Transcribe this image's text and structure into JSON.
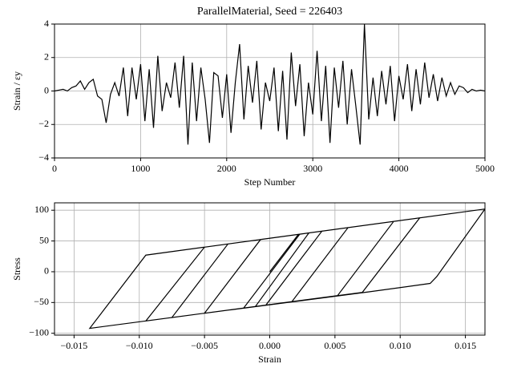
{
  "chart_data": [
    {
      "type": "line",
      "title": "ParallelMaterial, Seed = 226403",
      "xlabel": "Step Number",
      "ylabel": "Strain / εy",
      "color": "#000000",
      "grid": true,
      "x": [
        0,
        50,
        100,
        150,
        200,
        250,
        300,
        350,
        400,
        450,
        500,
        550,
        600,
        650,
        700,
        750,
        800,
        850,
        900,
        950,
        1000,
        1050,
        1100,
        1150,
        1200,
        1250,
        1300,
        1350,
        1400,
        1450,
        1500,
        1550,
        1600,
        1650,
        1700,
        1750,
        1800,
        1850,
        1900,
        1950,
        2000,
        2050,
        2100,
        2150,
        2200,
        2250,
        2300,
        2350,
        2400,
        2450,
        2500,
        2550,
        2600,
        2650,
        2700,
        2750,
        2800,
        2850,
        2900,
        2950,
        3000,
        3050,
        3100,
        3150,
        3200,
        3250,
        3300,
        3350,
        3400,
        3450,
        3500,
        3550,
        3600,
        3650,
        3700,
        3750,
        3800,
        3850,
        3900,
        3950,
        4000,
        4050,
        4100,
        4150,
        4200,
        4250,
        4300,
        4350,
        4400,
        4450,
        4500,
        4550,
        4600,
        4650,
        4700,
        4750,
        4800,
        4850,
        4900,
        4950,
        5000
      ],
      "values": [
        0,
        0.05,
        0.1,
        0,
        0.2,
        0.3,
        0.6,
        0.1,
        0.5,
        0.7,
        -0.3,
        -0.5,
        -1.9,
        -0.2,
        0.5,
        -0.3,
        1.4,
        -1.5,
        1.4,
        -0.5,
        1.6,
        -1.8,
        1.3,
        -2.2,
        2.1,
        -1.2,
        0.5,
        -0.4,
        1.7,
        -1.0,
        2.1,
        -3.2,
        1.7,
        -1.8,
        1.4,
        -0.5,
        -3.1,
        1.1,
        0.9,
        -1.6,
        1.0,
        -2.5,
        0.5,
        2.8,
        -1.7,
        1.5,
        -0.7,
        1.8,
        -2.3,
        0.5,
        -0.6,
        1.4,
        -2.4,
        1.2,
        -2.9,
        2.3,
        -0.9,
        1.6,
        -2.7,
        0.5,
        -1.4,
        2.4,
        -1.8,
        1.5,
        -3.1,
        1.4,
        -1.0,
        1.8,
        -2.0,
        1.3,
        -0.9,
        -3.2,
        4.0,
        -1.7,
        0.8,
        -1.5,
        1.2,
        -0.8,
        1.5,
        -1.8,
        0.9,
        -0.5,
        1.6,
        -1.2,
        1.3,
        -0.8,
        1.7,
        -0.4,
        1.0,
        -0.6,
        0.8,
        -0.3,
        0.5,
        -0.2,
        0.3,
        0.2,
        -0.1,
        0.1,
        0,
        0.05,
        0
      ],
      "xlim": [
        0,
        5000
      ],
      "xticks": [
        0,
        1000,
        2000,
        3000,
        4000,
        5000
      ],
      "ylim": [
        -4,
        4
      ],
      "yticks": [
        {
          "value": -4,
          "label": "−4"
        },
        {
          "value": -2,
          "label": "−2"
        },
        0,
        2,
        4
      ]
    },
    {
      "type": "line",
      "xlabel": "Strain",
      "ylabel": "Stress",
      "color": "#000000",
      "grid": true,
      "x": [
        0,
        0.0022,
        0.004,
        -0.0003,
        -0.005,
        -0.0007,
        0.006,
        0.0017,
        -0.002,
        0.0023,
        0.0095,
        0.0052,
        -0.0075,
        -0.0032,
        0.003,
        -0.0011,
        -0.0095,
        -0.005,
        0.0115,
        0.0071,
        -0.0138,
        -0.0095,
        0.0165,
        0.0128,
        0.0123,
        0.0075,
        -0.003
      ],
      "values": [
        0,
        60.7,
        66,
        -54.3,
        -67.4,
        52.4,
        71.7,
        -48.6,
        -59,
        61,
        81.8,
        -38.8,
        -74.4,
        45.2,
        63,
        -56.5,
        -80,
        40,
        87.6,
        -33.5,
        -92,
        27,
        102,
        -8,
        -19,
        -33,
        -62
      ],
      "xlim": [
        -0.0165,
        0.0165
      ],
      "xticks": [
        {
          "value": -0.015,
          "label": "−0.015"
        },
        {
          "value": -0.01,
          "label": "−0.010"
        },
        {
          "value": -0.005,
          "label": "−0.005"
        },
        {
          "value": 0,
          "label": "0.000"
        },
        {
          "value": 0.005,
          "label": "0.005"
        },
        {
          "value": 0.01,
          "label": "0.010"
        },
        {
          "value": 0.015,
          "label": "0.015"
        }
      ],
      "ylim": [
        -103,
        112
      ],
      "yticks": [
        {
          "value": -100,
          "label": "−100"
        },
        {
          "value": -50,
          "label": "−50"
        },
        0,
        50,
        100
      ]
    }
  ]
}
